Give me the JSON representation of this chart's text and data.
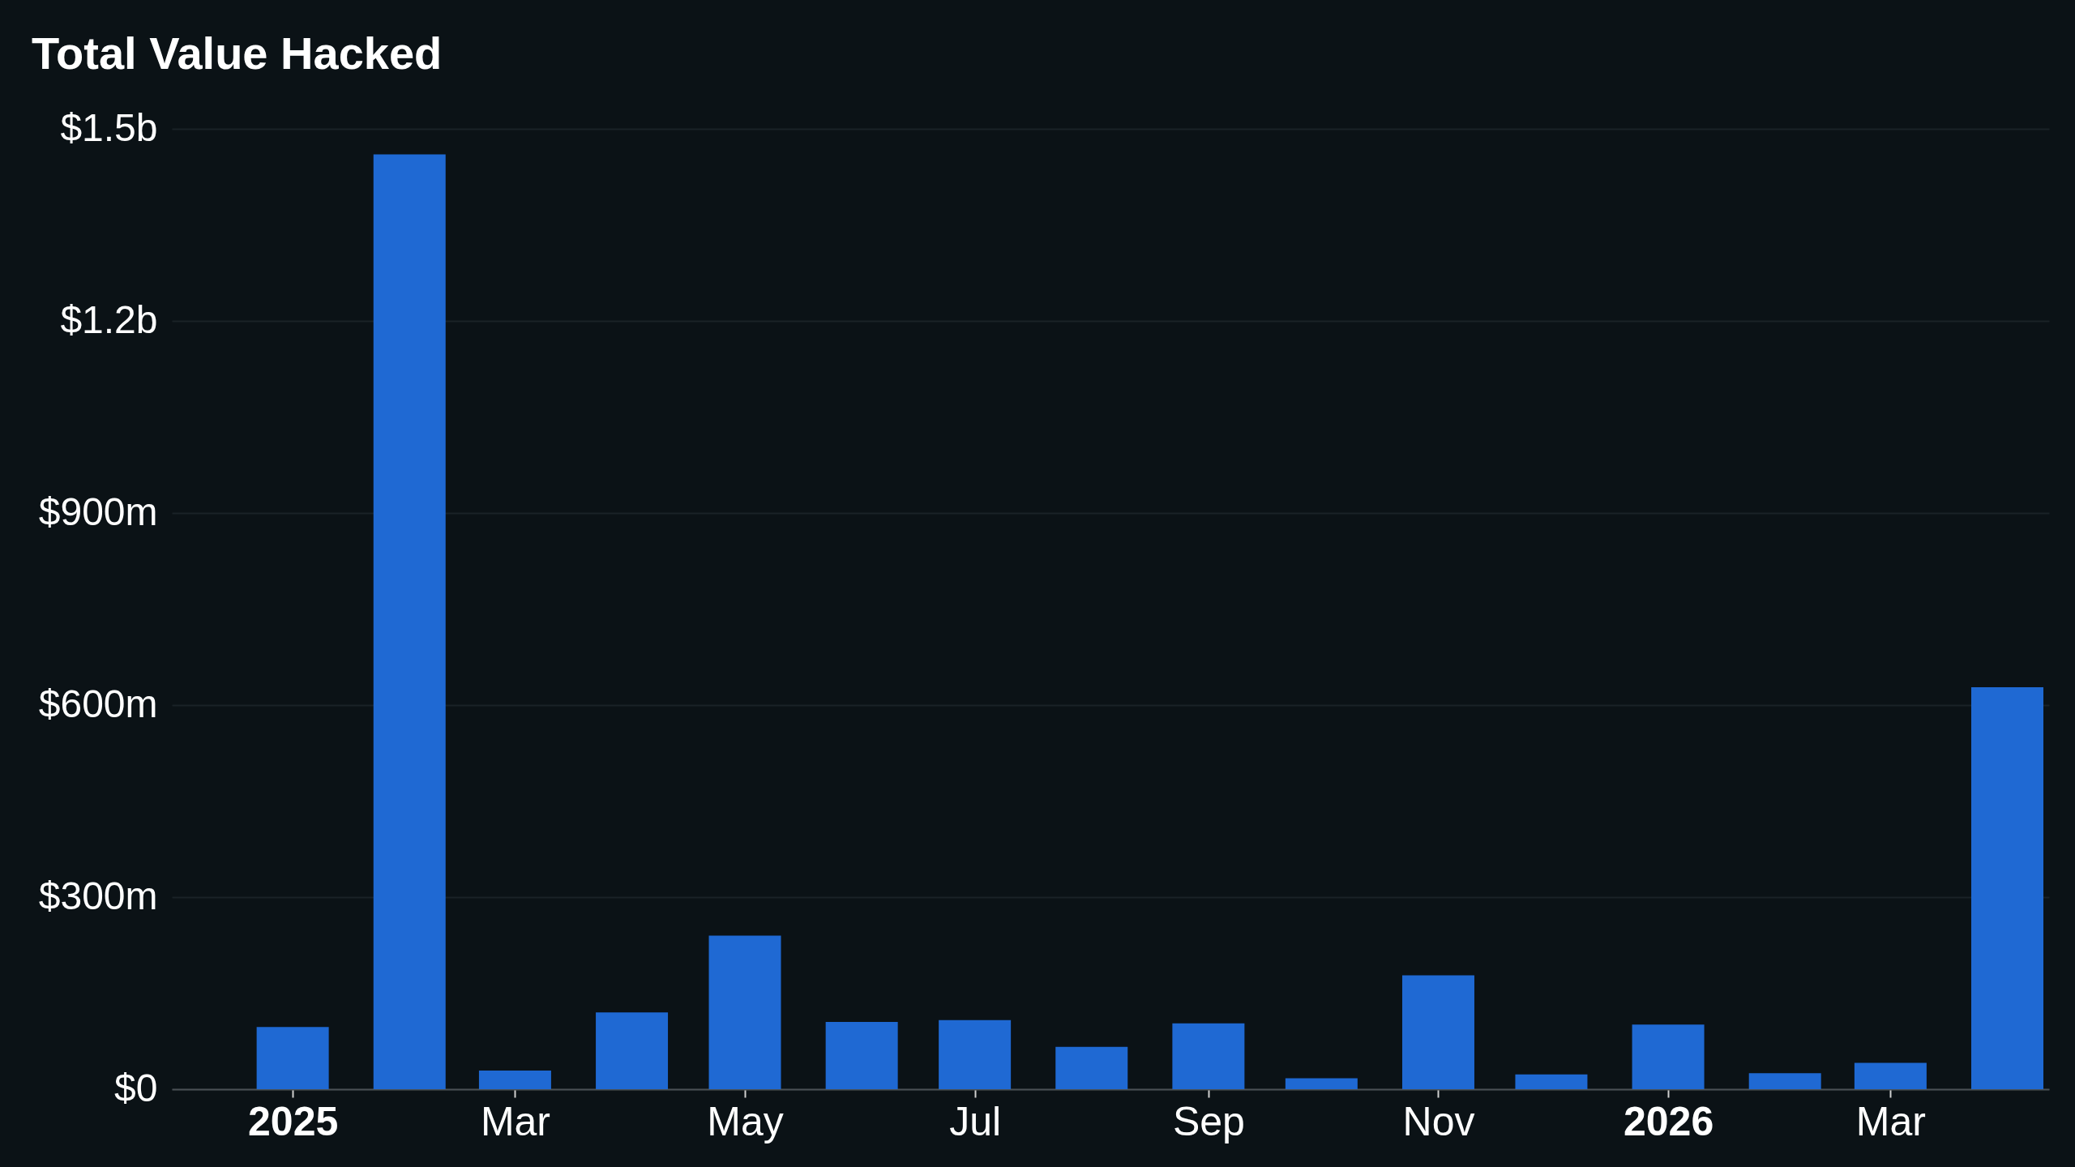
{
  "chart_data": {
    "type": "bar",
    "title": "Total Value Hacked",
    "x": [
      "2025-01",
      "2025-02",
      "2025-03",
      "2025-04",
      "2025-05",
      "2025-06",
      "2025-07",
      "2025-08",
      "2025-09",
      "2025-10",
      "2025-11",
      "2025-12",
      "2026-01",
      "2026-02",
      "2026-03",
      "2026-04"
    ],
    "values": [
      97000000,
      1460000000,
      29000000,
      120000000,
      240000000,
      105000000,
      108000000,
      66000000,
      103000000,
      17000000,
      178000000,
      23000000,
      101000000,
      25000000,
      41000000,
      628000000
    ],
    "color": "#1f69d3",
    "xlim": [
      "2024-12-01",
      "2026-04-11"
    ],
    "xticks": [
      {
        "value": "2025-01",
        "label": "2025"
      },
      {
        "value": "2025-03",
        "label": "Mar"
      },
      {
        "value": "2025-05",
        "label": "May"
      },
      {
        "value": "2025-07",
        "label": "Jul"
      },
      {
        "value": "2025-09",
        "label": "Sep"
      },
      {
        "value": "2025-11",
        "label": "Nov"
      },
      {
        "value": "2026-01",
        "label": "2026"
      },
      {
        "value": "2026-03",
        "label": "Mar"
      }
    ],
    "ylim": [
      0,
      1500000000
    ],
    "yticks": [
      {
        "value": 0,
        "label": "$0"
      },
      {
        "value": 300000000,
        "label": "$300m"
      },
      {
        "value": 600000000,
        "label": "$600m"
      },
      {
        "value": 900000000,
        "label": "$900m"
      },
      {
        "value": 1200000000,
        "label": "$1.2b"
      },
      {
        "value": 1500000000,
        "label": "$1.5b"
      }
    ],
    "grid": "y"
  }
}
